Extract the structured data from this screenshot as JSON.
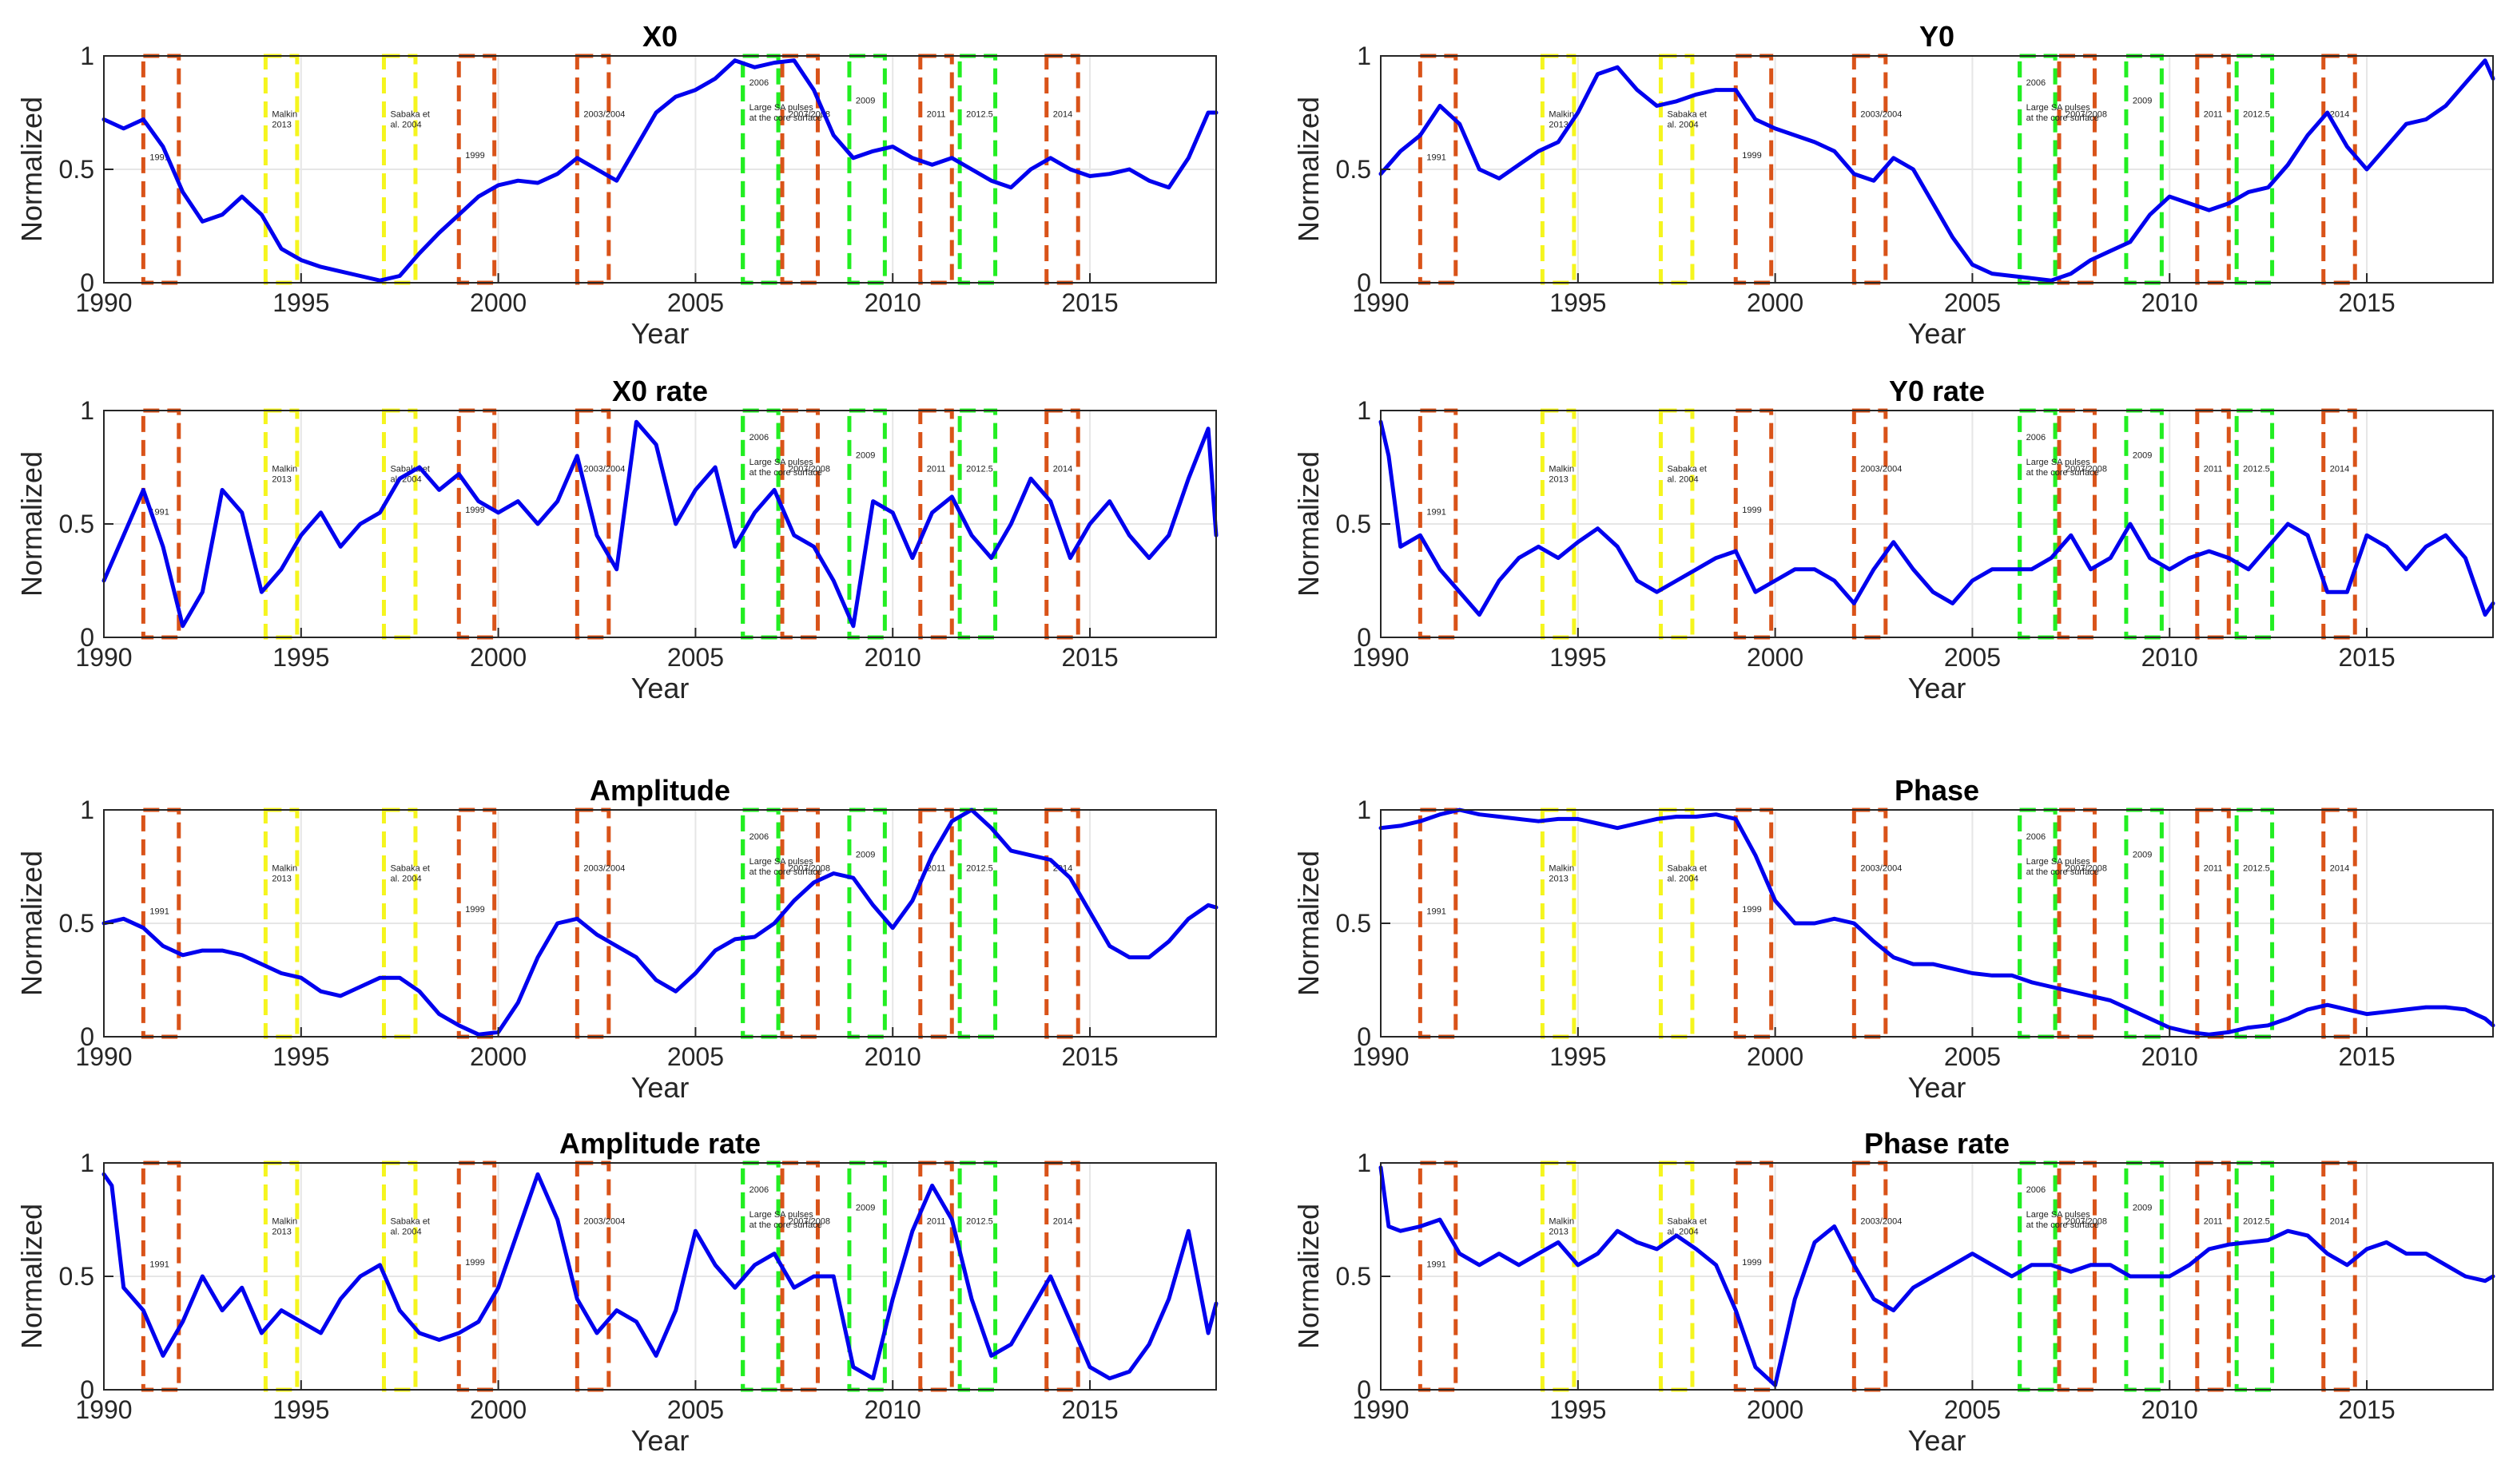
{
  "figure": {
    "xlabel": "Year",
    "ylabel": "Normalized"
  },
  "events": [
    {
      "label": "1991",
      "start": 1991.0,
      "end": 1991.9,
      "color": "#d95319"
    },
    {
      "label": "Malkin 2013",
      "start": 1994.1,
      "end": 1994.9,
      "color": "#f5f51e"
    },
    {
      "label": "Sabaka et al. 2004",
      "start": 1997.1,
      "end": 1997.9,
      "color": "#f5f51e"
    },
    {
      "label": "1999",
      "start": 1999.0,
      "end": 1999.9,
      "color": "#d95319"
    },
    {
      "label": "2003/2004",
      "start": 2002.0,
      "end": 2002.8,
      "color": "#d95319"
    },
    {
      "label": "2006",
      "start": 2006.2,
      "end": 2007.1,
      "color": "#22ee22"
    },
    {
      "label": "Large SA pulses at the core surface",
      "start": 2006.2,
      "end": 2007.1,
      "color": "#22ee22"
    },
    {
      "label": "2007/2008",
      "start": 2007.2,
      "end": 2008.1,
      "color": "#d95319"
    },
    {
      "label": "2009",
      "start": 2008.9,
      "end": 2009.8,
      "color": "#22ee22"
    },
    {
      "label": "2011",
      "start": 2010.7,
      "end": 2011.5,
      "color": "#d95319"
    },
    {
      "label": "2012.5",
      "start": 2011.7,
      "end": 2012.6,
      "color": "#22ee22"
    },
    {
      "label": "2014",
      "start": 2013.9,
      "end": 2014.7,
      "color": "#d95319"
    }
  ],
  "chart_data": [
    {
      "type": "line",
      "title": "X0",
      "xlabel": "Year",
      "ylabel": "Normalized",
      "xlim": [
        1990,
        2018.2
      ],
      "ylim": [
        0,
        1
      ],
      "xticks": [
        1990,
        1995,
        2000,
        2005,
        2010,
        2015
      ],
      "yticks": [
        0,
        0.5,
        1
      ],
      "series_color": "#0000ee",
      "x": [
        1990,
        1990.5,
        1991,
        1991.5,
        1992,
        1992.5,
        1993,
        1993.5,
        1994,
        1994.5,
        1995,
        1995.5,
        1996,
        1996.5,
        1997,
        1997.5,
        1998,
        1998.5,
        1999,
        1999.5,
        2000,
        2000.5,
        2001,
        2001.5,
        2002,
        2002.5,
        2003,
        2003.5,
        2004,
        2004.5,
        2005,
        2005.5,
        2006,
        2006.5,
        2007,
        2007.5,
        2008,
        2008.5,
        2009,
        2009.5,
        2010,
        2010.5,
        2011,
        2011.5,
        2012,
        2012.5,
        2013,
        2013.5,
        2014,
        2014.5,
        2015,
        2015.5,
        2016,
        2016.5,
        2017,
        2017.5,
        2018,
        2018.2
      ],
      "y": [
        0.72,
        0.68,
        0.72,
        0.6,
        0.4,
        0.27,
        0.3,
        0.38,
        0.3,
        0.15,
        0.1,
        0.07,
        0.05,
        0.03,
        0.01,
        0.03,
        0.13,
        0.22,
        0.3,
        0.38,
        0.43,
        0.45,
        0.44,
        0.48,
        0.55,
        0.5,
        0.45,
        0.6,
        0.75,
        0.82,
        0.85,
        0.9,
        0.98,
        0.95,
        0.97,
        0.98,
        0.85,
        0.65,
        0.55,
        0.58,
        0.6,
        0.55,
        0.52,
        0.55,
        0.5,
        0.45,
        0.42,
        0.5,
        0.55,
        0.5,
        0.47,
        0.48,
        0.5,
        0.45,
        0.42,
        0.55,
        0.75,
        0.75
      ]
    },
    {
      "type": "line",
      "title": "Y0",
      "xlabel": "Year",
      "ylabel": "Normalized",
      "xlim": [
        1990,
        2018.2
      ],
      "ylim": [
        0,
        1
      ],
      "xticks": [
        1990,
        1995,
        2000,
        2005,
        2010,
        2015
      ],
      "yticks": [
        0,
        0.5,
        1
      ],
      "series_color": "#0000ee",
      "x": [
        1990,
        1990.5,
        1991,
        1991.5,
        1992,
        1992.5,
        1993,
        1993.5,
        1994,
        1994.5,
        1995,
        1995.5,
        1996,
        1996.5,
        1997,
        1997.5,
        1998,
        1998.5,
        1999,
        1999.5,
        2000,
        2000.5,
        2001,
        2001.5,
        2002,
        2002.5,
        2003,
        2003.5,
        2004,
        2004.5,
        2005,
        2005.5,
        2006,
        2006.5,
        2007,
        2007.5,
        2008,
        2008.5,
        2009,
        2009.5,
        2010,
        2010.5,
        2011,
        2011.5,
        2012,
        2012.5,
        2013,
        2013.5,
        2014,
        2014.5,
        2015,
        2015.5,
        2016,
        2016.5,
        2017,
        2017.5,
        2018,
        2018.2
      ],
      "y": [
        0.48,
        0.58,
        0.65,
        0.78,
        0.7,
        0.5,
        0.46,
        0.52,
        0.58,
        0.62,
        0.75,
        0.92,
        0.95,
        0.85,
        0.78,
        0.8,
        0.83,
        0.85,
        0.85,
        0.72,
        0.68,
        0.65,
        0.62,
        0.58,
        0.48,
        0.45,
        0.55,
        0.5,
        0.35,
        0.2,
        0.08,
        0.04,
        0.03,
        0.02,
        0.01,
        0.04,
        0.1,
        0.14,
        0.18,
        0.3,
        0.38,
        0.35,
        0.32,
        0.35,
        0.4,
        0.42,
        0.52,
        0.65,
        0.75,
        0.6,
        0.5,
        0.6,
        0.7,
        0.72,
        0.78,
        0.88,
        0.98,
        0.9
      ]
    },
    {
      "type": "line",
      "title": "X0 rate",
      "xlabel": "Year",
      "ylabel": "Normalized",
      "xlim": [
        1990,
        2018.2
      ],
      "ylim": [
        0,
        1
      ],
      "xticks": [
        1990,
        1995,
        2000,
        2005,
        2010,
        2015
      ],
      "yticks": [
        0,
        0.5,
        1
      ],
      "series_color": "#0000ee",
      "x": [
        1990,
        1990.5,
        1991,
        1991.5,
        1992,
        1992.5,
        1993,
        1993.5,
        1994,
        1994.5,
        1995,
        1995.5,
        1996,
        1996.5,
        1997,
        1997.5,
        1998,
        1998.5,
        1999,
        1999.5,
        2000,
        2000.5,
        2001,
        2001.5,
        2002,
        2002.5,
        2003,
        2003.5,
        2004,
        2004.5,
        2005,
        2005.5,
        2006,
        2006.5,
        2007,
        2007.5,
        2008,
        2008.5,
        2009,
        2009.5,
        2010,
        2010.5,
        2011,
        2011.5,
        2012,
        2012.5,
        2013,
        2013.5,
        2014,
        2014.5,
        2015,
        2015.5,
        2016,
        2016.5,
        2017,
        2017.5,
        2018,
        2018.2
      ],
      "y": [
        0.25,
        0.45,
        0.65,
        0.4,
        0.05,
        0.2,
        0.65,
        0.55,
        0.2,
        0.3,
        0.45,
        0.55,
        0.4,
        0.5,
        0.55,
        0.7,
        0.75,
        0.65,
        0.72,
        0.6,
        0.55,
        0.6,
        0.5,
        0.6,
        0.8,
        0.45,
        0.3,
        0.95,
        0.85,
        0.5,
        0.65,
        0.75,
        0.4,
        0.55,
        0.65,
        0.45,
        0.4,
        0.25,
        0.05,
        0.6,
        0.55,
        0.35,
        0.55,
        0.62,
        0.45,
        0.35,
        0.5,
        0.7,
        0.6,
        0.35,
        0.5,
        0.6,
        0.45,
        0.35,
        0.45,
        0.7,
        0.92,
        0.45
      ]
    },
    {
      "type": "line",
      "title": "Y0 rate",
      "xlabel": "Year",
      "ylabel": "Normalized",
      "xlim": [
        1990,
        2018.2
      ],
      "ylim": [
        0,
        1
      ],
      "xticks": [
        1990,
        1995,
        2000,
        2005,
        2010,
        2015
      ],
      "yticks": [
        0,
        0.5,
        1
      ],
      "series_color": "#0000ee",
      "x": [
        1990,
        1990.2,
        1990.5,
        1991,
        1991.5,
        1992,
        1992.5,
        1993,
        1993.5,
        1994,
        1994.5,
        1995,
        1995.5,
        1996,
        1996.5,
        1997,
        1997.5,
        1998,
        1998.5,
        1999,
        1999.5,
        2000,
        2000.5,
        2001,
        2001.5,
        2002,
        2002.5,
        2003,
        2003.5,
        2004,
        2004.5,
        2005,
        2005.5,
        2006,
        2006.5,
        2007,
        2007.5,
        2008,
        2008.5,
        2009,
        2009.5,
        2010,
        2010.5,
        2011,
        2011.5,
        2012,
        2012.5,
        2013,
        2013.5,
        2014,
        2014.5,
        2015,
        2015.5,
        2016,
        2016.5,
        2017,
        2017.5,
        2018,
        2018.2
      ],
      "y": [
        0.95,
        0.8,
        0.4,
        0.45,
        0.3,
        0.2,
        0.1,
        0.25,
        0.35,
        0.4,
        0.35,
        0.42,
        0.48,
        0.4,
        0.25,
        0.2,
        0.25,
        0.3,
        0.35,
        0.38,
        0.2,
        0.25,
        0.3,
        0.3,
        0.25,
        0.15,
        0.3,
        0.42,
        0.3,
        0.2,
        0.15,
        0.25,
        0.3,
        0.3,
        0.3,
        0.35,
        0.45,
        0.3,
        0.35,
        0.5,
        0.35,
        0.3,
        0.35,
        0.38,
        0.35,
        0.3,
        0.4,
        0.5,
        0.45,
        0.2,
        0.2,
        0.45,
        0.4,
        0.3,
        0.4,
        0.45,
        0.35,
        0.1,
        0.15
      ]
    },
    {
      "type": "line",
      "title": "Amplitude",
      "xlabel": "Year",
      "ylabel": "Normalized",
      "xlim": [
        1990,
        2018.2
      ],
      "ylim": [
        0,
        1
      ],
      "xticks": [
        1990,
        1995,
        2000,
        2005,
        2010,
        2015
      ],
      "yticks": [
        0,
        0.5,
        1
      ],
      "series_color": "#0000ee",
      "x": [
        1990,
        1990.5,
        1991,
        1991.5,
        1992,
        1992.5,
        1993,
        1993.5,
        1994,
        1994.5,
        1995,
        1995.5,
        1996,
        1996.5,
        1997,
        1997.5,
        1998,
        1998.5,
        1999,
        1999.5,
        2000,
        2000.5,
        2001,
        2001.5,
        2002,
        2002.5,
        2003,
        2003.5,
        2004,
        2004.5,
        2005,
        2005.5,
        2006,
        2006.5,
        2007,
        2007.5,
        2008,
        2008.5,
        2009,
        2009.5,
        2010,
        2010.5,
        2011,
        2011.5,
        2012,
        2012.5,
        2013,
        2013.5,
        2014,
        2014.5,
        2015,
        2015.5,
        2016,
        2016.5,
        2017,
        2017.5,
        2018,
        2018.2
      ],
      "y": [
        0.5,
        0.52,
        0.48,
        0.4,
        0.36,
        0.38,
        0.38,
        0.36,
        0.32,
        0.28,
        0.26,
        0.2,
        0.18,
        0.22,
        0.26,
        0.26,
        0.2,
        0.1,
        0.05,
        0.01,
        0.02,
        0.15,
        0.35,
        0.5,
        0.52,
        0.45,
        0.4,
        0.35,
        0.25,
        0.2,
        0.28,
        0.38,
        0.43,
        0.44,
        0.5,
        0.6,
        0.68,
        0.72,
        0.7,
        0.58,
        0.48,
        0.6,
        0.8,
        0.95,
        1.0,
        0.92,
        0.82,
        0.8,
        0.78,
        0.7,
        0.55,
        0.4,
        0.35,
        0.35,
        0.42,
        0.52,
        0.58,
        0.57
      ]
    },
    {
      "type": "line",
      "title": "Phase",
      "xlabel": "Year",
      "ylabel": "Normalized",
      "xlim": [
        1990,
        2018.2
      ],
      "ylim": [
        0,
        1
      ],
      "xticks": [
        1990,
        1995,
        2000,
        2005,
        2010,
        2015
      ],
      "yticks": [
        0,
        0.5,
        1
      ],
      "series_color": "#0000ee",
      "x": [
        1990,
        1990.5,
        1991,
        1991.5,
        1992,
        1992.5,
        1993,
        1993.5,
        1994,
        1994.5,
        1995,
        1995.5,
        1996,
        1996.5,
        1997,
        1997.5,
        1998,
        1998.5,
        1999,
        1999.5,
        2000,
        2000.5,
        2001,
        2001.5,
        2002,
        2002.5,
        2003,
        2003.5,
        2004,
        2004.5,
        2005,
        2005.5,
        2006,
        2006.5,
        2007,
        2007.5,
        2008,
        2008.5,
        2009,
        2009.5,
        2010,
        2010.5,
        2011,
        2011.5,
        2012,
        2012.5,
        2013,
        2013.5,
        2014,
        2014.5,
        2015,
        2015.5,
        2016,
        2016.5,
        2017,
        2017.5,
        2018,
        2018.2
      ],
      "y": [
        0.92,
        0.93,
        0.95,
        0.98,
        1.0,
        0.98,
        0.97,
        0.96,
        0.95,
        0.96,
        0.96,
        0.94,
        0.92,
        0.94,
        0.96,
        0.97,
        0.97,
        0.98,
        0.96,
        0.8,
        0.6,
        0.5,
        0.5,
        0.52,
        0.5,
        0.42,
        0.35,
        0.32,
        0.32,
        0.3,
        0.28,
        0.27,
        0.27,
        0.24,
        0.22,
        0.2,
        0.18,
        0.16,
        0.12,
        0.08,
        0.04,
        0.02,
        0.01,
        0.02,
        0.04,
        0.05,
        0.08,
        0.12,
        0.14,
        0.12,
        0.1,
        0.11,
        0.12,
        0.13,
        0.13,
        0.12,
        0.08,
        0.05
      ]
    },
    {
      "type": "line",
      "title": "Amplitude rate",
      "xlabel": "Year",
      "ylabel": "Normalized",
      "xlim": [
        1990,
        2018.2
      ],
      "ylim": [
        0,
        1
      ],
      "xticks": [
        1990,
        1995,
        2000,
        2005,
        2010,
        2015
      ],
      "yticks": [
        0,
        0.5,
        1
      ],
      "series_color": "#0000ee",
      "x": [
        1990,
        1990.2,
        1990.5,
        1991,
        1991.5,
        1992,
        1992.5,
        1993,
        1993.5,
        1994,
        1994.5,
        1995,
        1995.5,
        1996,
        1996.5,
        1997,
        1997.5,
        1998,
        1998.5,
        1999,
        1999.5,
        2000,
        2000.5,
        2001,
        2001.5,
        2002,
        2002.5,
        2003,
        2003.5,
        2004,
        2004.5,
        2005,
        2005.5,
        2006,
        2006.5,
        2007,
        2007.5,
        2008,
        2008.5,
        2009,
        2009.5,
        2010,
        2010.5,
        2011,
        2011.5,
        2012,
        2012.5,
        2013,
        2013.5,
        2014,
        2014.5,
        2015,
        2015.5,
        2016,
        2016.5,
        2017,
        2017.5,
        2018,
        2018.2
      ],
      "y": [
        0.95,
        0.9,
        0.45,
        0.35,
        0.15,
        0.3,
        0.5,
        0.35,
        0.45,
        0.25,
        0.35,
        0.3,
        0.25,
        0.4,
        0.5,
        0.55,
        0.35,
        0.25,
        0.22,
        0.25,
        0.3,
        0.45,
        0.7,
        0.95,
        0.75,
        0.4,
        0.25,
        0.35,
        0.3,
        0.15,
        0.35,
        0.7,
        0.55,
        0.45,
        0.55,
        0.6,
        0.45,
        0.5,
        0.5,
        0.1,
        0.05,
        0.4,
        0.7,
        0.9,
        0.75,
        0.4,
        0.15,
        0.2,
        0.35,
        0.5,
        0.3,
        0.1,
        0.05,
        0.08,
        0.2,
        0.4,
        0.7,
        0.25,
        0.38
      ]
    },
    {
      "type": "line",
      "title": "Phase rate",
      "xlabel": "Year",
      "ylabel": "Normalized",
      "xlim": [
        1990,
        2018.2
      ],
      "ylim": [
        0,
        1
      ],
      "xticks": [
        1990,
        1995,
        2000,
        2005,
        2010,
        2015
      ],
      "yticks": [
        0,
        0.5,
        1
      ],
      "series_color": "#0000ee",
      "x": [
        1990,
        1990.2,
        1990.5,
        1991,
        1991.5,
        1992,
        1992.5,
        1993,
        1993.5,
        1994,
        1994.5,
        1995,
        1995.5,
        1996,
        1996.5,
        1997,
        1997.5,
        1998,
        1998.5,
        1999,
        1999.5,
        2000,
        2000.5,
        2001,
        2001.5,
        2002,
        2002.5,
        2003,
        2003.5,
        2004,
        2004.5,
        2005,
        2005.5,
        2006,
        2006.5,
        2007,
        2007.5,
        2008,
        2008.5,
        2009,
        2009.5,
        2010,
        2010.5,
        2011,
        2011.5,
        2012,
        2012.5,
        2013,
        2013.5,
        2014,
        2014.5,
        2015,
        2015.5,
        2016,
        2016.5,
        2017,
        2017.5,
        2018,
        2018.2
      ],
      "y": [
        0.98,
        0.72,
        0.7,
        0.72,
        0.75,
        0.6,
        0.55,
        0.6,
        0.55,
        0.6,
        0.65,
        0.55,
        0.6,
        0.7,
        0.65,
        0.62,
        0.68,
        0.62,
        0.55,
        0.35,
        0.1,
        0.02,
        0.4,
        0.65,
        0.72,
        0.55,
        0.4,
        0.35,
        0.45,
        0.5,
        0.55,
        0.6,
        0.55,
        0.5,
        0.55,
        0.55,
        0.52,
        0.55,
        0.55,
        0.5,
        0.5,
        0.5,
        0.55,
        0.62,
        0.64,
        0.65,
        0.66,
        0.7,
        0.68,
        0.6,
        0.55,
        0.62,
        0.65,
        0.6,
        0.6,
        0.55,
        0.5,
        0.48,
        0.5
      ]
    }
  ]
}
